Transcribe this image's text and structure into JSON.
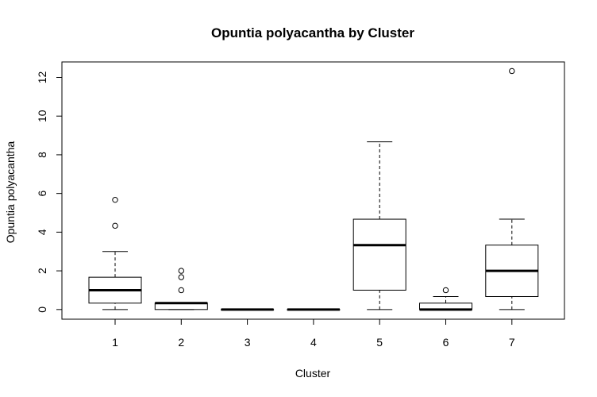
{
  "chart_data": {
    "type": "boxplot",
    "title": "Opuntia polyacantha  by Cluster",
    "xlabel": "Cluster",
    "ylabel": "Opuntia polyacantha",
    "categories": [
      "1",
      "2",
      "3",
      "4",
      "5",
      "6",
      "7"
    ],
    "yticks": [
      0,
      2,
      4,
      6,
      8,
      10,
      12
    ],
    "ylim": [
      -0.5,
      12.8
    ],
    "grid": false,
    "series": [
      {
        "category": "1",
        "whisker_low": 0,
        "q1": 0.33,
        "median": 1.0,
        "q3": 1.67,
        "whisker_high": 3.0,
        "outliers": [
          4.33,
          5.67
        ]
      },
      {
        "category": "2",
        "whisker_low": 0,
        "q1": 0,
        "median": 0.33,
        "q3": 0.33,
        "whisker_high": 0.33,
        "outliers": [
          1.0,
          1.67,
          2.0
        ]
      },
      {
        "category": "3",
        "whisker_low": 0,
        "q1": 0,
        "median": 0,
        "q3": 0,
        "whisker_high": 0,
        "outliers": []
      },
      {
        "category": "4",
        "whisker_low": 0,
        "q1": 0,
        "median": 0,
        "q3": 0,
        "whisker_high": 0,
        "outliers": []
      },
      {
        "category": "5",
        "whisker_low": 0,
        "q1": 1.0,
        "median": 3.33,
        "q3": 4.67,
        "whisker_high": 8.67,
        "outliers": []
      },
      {
        "category": "6",
        "whisker_low": 0,
        "q1": 0,
        "median": 0,
        "q3": 0.33,
        "whisker_high": 0.67,
        "outliers": [
          1.0
        ]
      },
      {
        "category": "7",
        "whisker_low": 0,
        "q1": 0.67,
        "median": 2.0,
        "q3": 3.33,
        "whisker_high": 4.67,
        "outliers": [
          12.33
        ]
      }
    ]
  }
}
